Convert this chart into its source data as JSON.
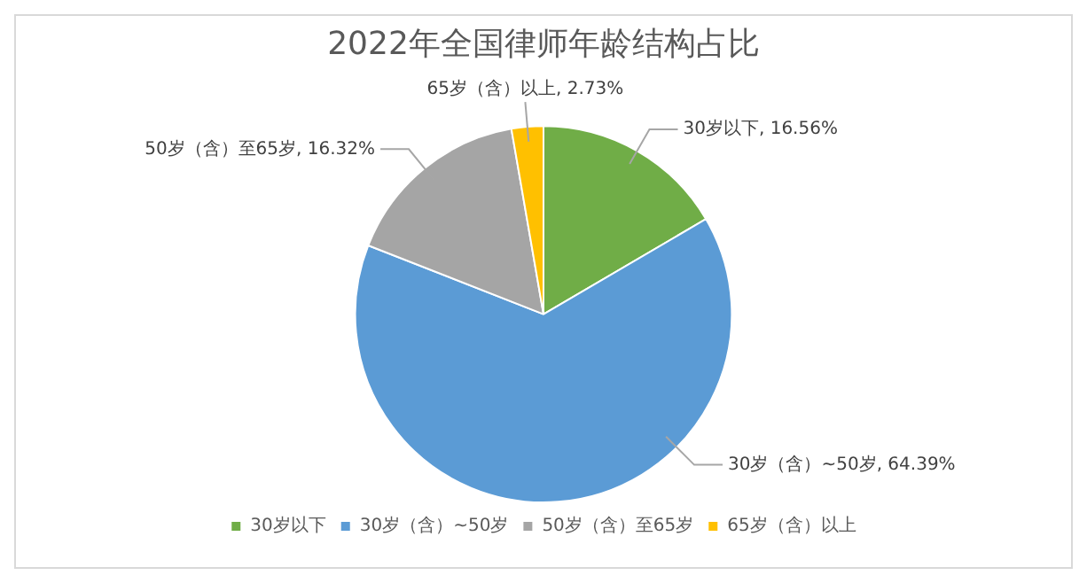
{
  "chart_data": {
    "type": "pie",
    "title": "2022年全国律师年龄结构占比",
    "categories": [
      "30岁以下",
      "30岁（含）~50岁",
      "50岁（含）至65岁",
      "65岁（含）以上"
    ],
    "values": [
      16.56,
      64.39,
      16.32,
      2.73
    ],
    "value_labels": [
      "30岁以下, 16.56%",
      "30岁（含）~50岁, 64.39%",
      "50岁（含）至65岁, 16.32%",
      "65岁（含）以上, 2.73%"
    ],
    "colors": [
      "#70ad47",
      "#5b9bd5",
      "#a5a5a5",
      "#ffc000"
    ],
    "legend": "bottom"
  }
}
